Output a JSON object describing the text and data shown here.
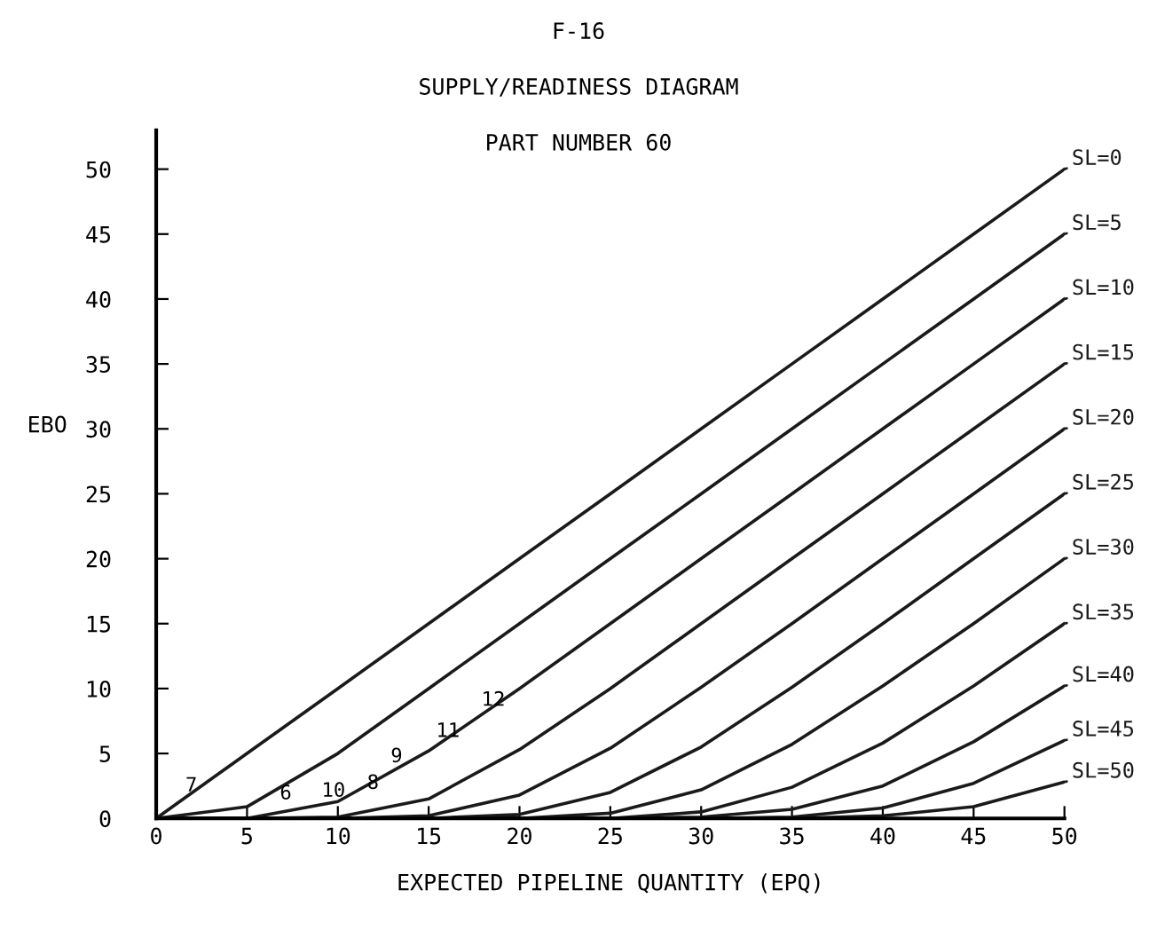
{
  "chart_data": {
    "type": "line",
    "title": "F-16",
    "subtitle": "SUPPLY/READINESS DIAGRAM",
    "xlabel": "EXPECTED PIPELINE QUANTITY (EPQ)",
    "ylabel": "EBO",
    "x": [
      0,
      5,
      10,
      15,
      20,
      25,
      30,
      35,
      40,
      45,
      50
    ],
    "series": [
      {
        "name": "SL=0",
        "color": "#1a1a1a",
        "values": [
          0,
          5,
          10,
          15,
          20,
          25,
          30,
          35,
          40,
          45,
          50
        ]
      },
      {
        "name": "SL=5",
        "color": "#1a1a1a",
        "values": [
          0,
          0.9,
          5,
          10,
          15,
          20,
          25,
          30,
          35,
          40,
          45
        ]
      },
      {
        "name": "SL=10",
        "color": "#1a1a1a",
        "values": [
          0,
          0,
          1.3,
          5.2,
          10,
          15,
          20,
          25,
          30,
          35,
          40
        ]
      },
      {
        "name": "SL=15",
        "color": "#1a1a1a",
        "values": [
          0,
          0,
          0.1,
          1.5,
          5.3,
          10,
          15,
          20,
          25,
          30,
          35
        ]
      },
      {
        "name": "SL=20",
        "color": "#1a1a1a",
        "values": [
          0,
          0,
          0,
          0.2,
          1.8,
          5.4,
          10.1,
          15,
          20,
          25,
          30
        ]
      },
      {
        "name": "SL=25",
        "color": "#1a1a1a",
        "values": [
          0,
          0,
          0,
          0,
          0.3,
          2,
          5.5,
          10.1,
          15,
          20,
          25
        ]
      },
      {
        "name": "SL=30",
        "color": "#1a1a1a",
        "values": [
          0,
          0,
          0,
          0,
          0,
          0.4,
          2.2,
          5.7,
          10.2,
          15,
          20
        ]
      },
      {
        "name": "SL=35",
        "color": "#1a1a1a",
        "values": [
          0,
          0,
          0,
          0,
          0,
          0,
          0.5,
          2.4,
          5.8,
          10.2,
          15
        ]
      },
      {
        "name": "SL=40",
        "color": "#1a1a1a",
        "values": [
          0,
          0,
          0,
          0,
          0,
          0,
          0.1,
          0.7,
          2.5,
          5.9,
          10.2
        ]
      },
      {
        "name": "SL=45",
        "color": "#1a1a1a",
        "values": [
          0,
          0,
          0,
          0,
          0,
          0,
          0,
          0.1,
          0.8,
          2.7,
          6
        ]
      },
      {
        "name": "SL=50",
        "color": "#1a1a1a",
        "values": [
          0,
          0,
          0,
          0,
          0,
          0,
          0,
          0,
          0.2,
          0.9,
          2.8
        ]
      }
    ],
    "xlim": [
      0,
      50
    ],
    "ylim": [
      0,
      53
    ],
    "xticks": [
      0,
      5,
      10,
      15,
      20,
      25,
      30,
      35,
      40,
      45,
      50
    ],
    "yticks": [
      0,
      5,
      10,
      15,
      20,
      25,
      30,
      35,
      40,
      45,
      50
    ],
    "grid": false,
    "legend": "right",
    "marker": "none",
    "line_style": "solid",
    "annotations": [
      "PART NUMBER 60",
      {
        "text": "7",
        "x": 1.2,
        "y": 1
      },
      {
        "text": "6",
        "x": 6.4,
        "y": 0.4
      },
      {
        "text": "10",
        "x": 8.7,
        "y": 0.6
      },
      {
        "text": "8",
        "x": 11.2,
        "y": 1.2
      },
      {
        "text": "9",
        "x": 12.5,
        "y": 3.25
      },
      {
        "text": "11",
        "x": 15,
        "y": 5.2
      },
      {
        "text": "12",
        "x": 17.5,
        "y": 7.6
      }
    ]
  }
}
